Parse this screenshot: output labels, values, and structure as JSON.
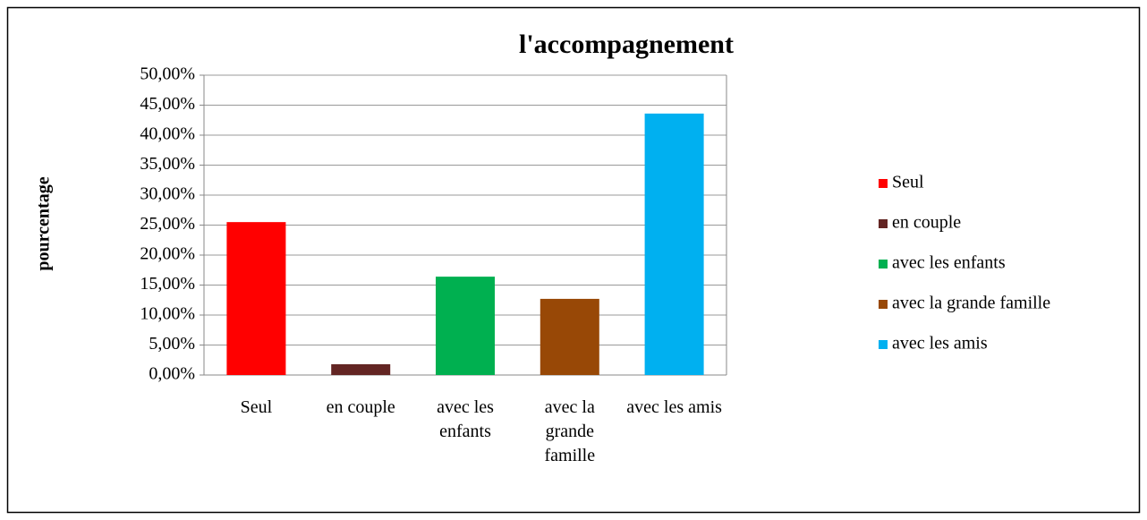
{
  "chart_data": {
    "type": "bar",
    "title": "l'accompagnement",
    "y_label": "pourcentage",
    "categories": [
      "Seul",
      "en couple",
      "avec les enfants",
      "avec la grande famille",
      "avec les amis"
    ],
    "values": [
      25.5,
      1.8,
      16.4,
      12.7,
      43.6
    ],
    "colors": [
      "#ff0000",
      "#632523",
      "#00b050",
      "#984806",
      "#00b0f0"
    ],
    "ylim": [
      0,
      50
    ],
    "yticks": [
      {
        "value": 0,
        "label": "0,00%"
      },
      {
        "value": 5,
        "label": "5,00%"
      },
      {
        "value": 10,
        "label": "10,00%"
      },
      {
        "value": 15,
        "label": "15,00%"
      },
      {
        "value": 20,
        "label": "20,00%"
      },
      {
        "value": 25,
        "label": "25,00%"
      },
      {
        "value": 30,
        "label": "30,00%"
      },
      {
        "value": 35,
        "label": "35,00%"
      },
      {
        "value": 40,
        "label": "40,00%"
      },
      {
        "value": 45,
        "label": "45,00%"
      },
      {
        "value": 50,
        "label": "50,00%"
      }
    ],
    "grid": true,
    "legend": "right"
  }
}
